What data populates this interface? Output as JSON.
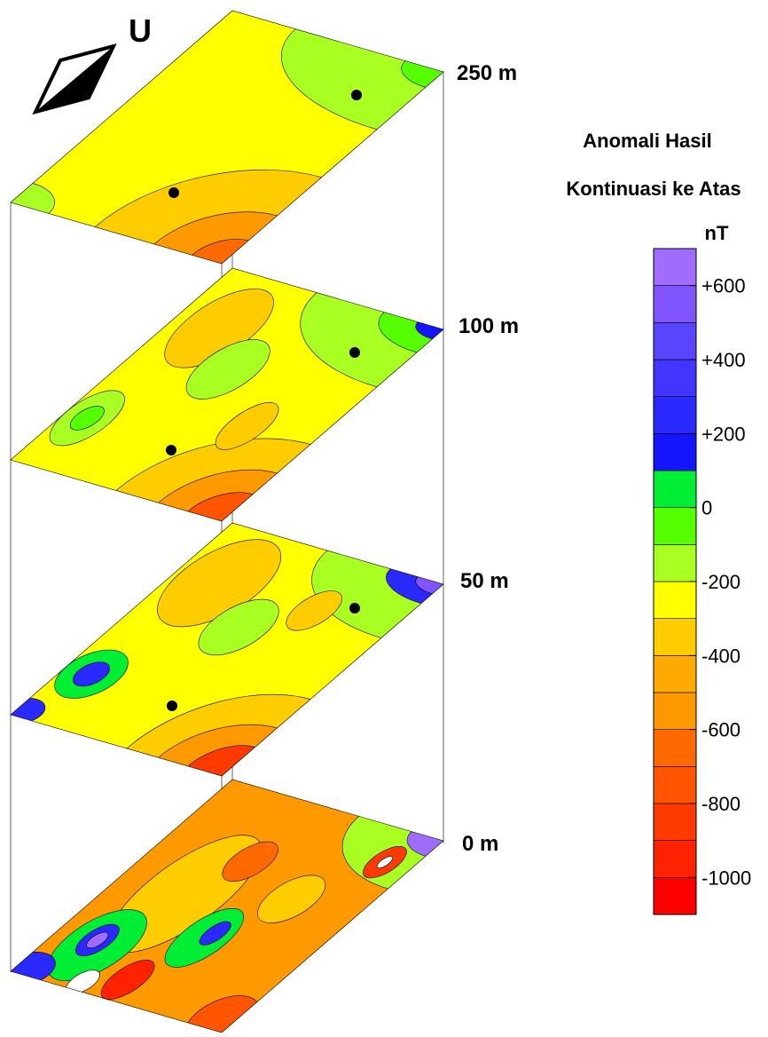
{
  "compass": "U",
  "layers": [
    "250 m",
    "100 m",
    "50 m",
    "0 m"
  ],
  "legend": {
    "title": [
      "Anomali Hasil",
      "Kontinuasi ke Atas"
    ],
    "unit": "nT",
    "lim": [
      -1100,
      700
    ],
    "ticks": [
      {
        "value": 600,
        "label": "+600"
      },
      {
        "value": 400,
        "label": "+400"
      },
      {
        "value": 200,
        "label": "+200"
      },
      0,
      -200,
      -400,
      -600,
      -800,
      -1000
    ],
    "colors": [
      "#ff0000",
      "#ff2200",
      "#ff3a00",
      "#ff5500",
      "#ff6a00",
      "#ff9900",
      "#ffaa00",
      "#ffcc00",
      "#ffff00",
      "#aaff22",
      "#55ff00",
      "#00ee33",
      "#1414ff",
      "#2a2aff",
      "#4235ff",
      "#5a45ff",
      "#8055ff",
      "#9f6cff"
    ]
  }
}
